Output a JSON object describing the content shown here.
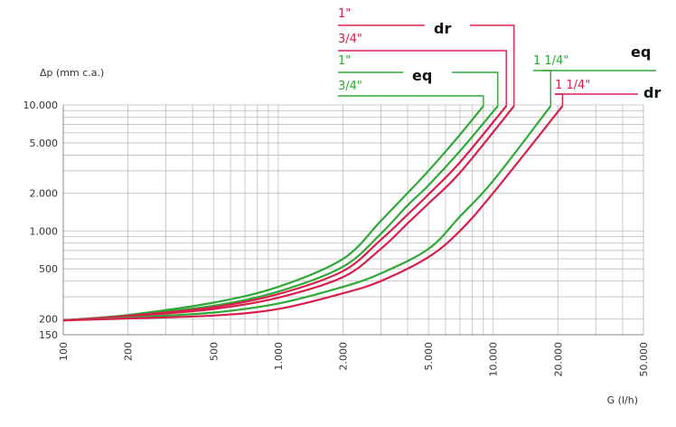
{
  "chart_data": {
    "type": "line",
    "title": "",
    "xlabel": "G (l/h)",
    "ylabel": "Δp (mm c.a.)",
    "x_scale": "log",
    "y_scale": "log",
    "xlim": [
      100,
      50000
    ],
    "ylim": [
      150,
      10000
    ],
    "grid": true,
    "x_ticks": [
      100,
      200,
      500,
      1000,
      2000,
      5000,
      10000,
      20000,
      50000
    ],
    "x_tick_labels": [
      "100",
      "200",
      "500",
      "1.000",
      "2.000",
      "5.000",
      "10.000",
      "20.000",
      "50.000"
    ],
    "y_ticks": [
      150,
      200,
      500,
      1000,
      2000,
      5000,
      10000
    ],
    "y_tick_labels": [
      "150",
      "200",
      "500",
      "1.000",
      "2.000",
      "5.000",
      "10.000"
    ],
    "colors": {
      "eq": "#2ea836",
      "dr": "#d81f4c",
      "grid": "#bdbdbd",
      "axis": "#888888"
    },
    "groups": [
      {
        "sizes": [
          "1\"",
          "3/4\""
        ],
        "type": "dr",
        "color": "#d81f4c"
      },
      {
        "sizes": [
          "1\"",
          "3/4\""
        ],
        "type": "eq",
        "color": "#2ea836"
      },
      {
        "sizes": [
          "1 1/4\""
        ],
        "type": "eq",
        "color": "#2ea836"
      },
      {
        "sizes": [
          "1 1/4\""
        ],
        "type": "dr",
        "color": "#d81f4c"
      }
    ],
    "series": [
      {
        "size": "3/4\"",
        "type": "eq",
        "color": "#2ea836",
        "x": [
          100,
          200,
          500,
          1000,
          2000,
          3000,
          4000,
          5000,
          7000,
          9000
        ],
        "y": [
          195,
          215,
          270,
          360,
          600,
          1200,
          2000,
          3000,
          5800,
          9800
        ]
      },
      {
        "size": "1\"",
        "type": "eq",
        "color": "#2ea836",
        "x": [
          100,
          200,
          500,
          1000,
          2000,
          3000,
          4000,
          5000,
          7000,
          10500
        ],
        "y": [
          195,
          213,
          255,
          330,
          520,
          950,
          1600,
          2300,
          4300,
          9800
        ]
      },
      {
        "size": "3/4\"",
        "type": "dr",
        "color": "#d81f4c",
        "x": [
          100,
          200,
          500,
          1000,
          2000,
          3000,
          4000,
          5000,
          7000,
          11500
        ],
        "y": [
          195,
          212,
          248,
          315,
          480,
          850,
          1350,
          1950,
          3500,
          9800
        ]
      },
      {
        "size": "1\"",
        "type": "dr",
        "color": "#d81f4c",
        "x": [
          100,
          200,
          500,
          1000,
          2000,
          3000,
          4000,
          5000,
          7000,
          12500
        ],
        "y": [
          195,
          210,
          240,
          295,
          430,
          720,
          1150,
          1650,
          2900,
          9800
        ]
      },
      {
        "size": "1 1/4\"",
        "type": "eq",
        "color": "#2ea836",
        "x": [
          100,
          200,
          500,
          1000,
          2000,
          3000,
          5000,
          7000,
          10000,
          18500
        ],
        "y": [
          195,
          205,
          225,
          265,
          360,
          460,
          720,
          1300,
          2500,
          9800
        ]
      },
      {
        "size": "1 1/4\"",
        "type": "dr",
        "color": "#d81f4c",
        "x": [
          100,
          200,
          500,
          1000,
          2000,
          3000,
          5000,
          7000,
          10000,
          21000
        ],
        "y": [
          195,
          202,
          213,
          240,
          320,
          400,
          620,
          1000,
          2000,
          9800
        ]
      }
    ]
  }
}
